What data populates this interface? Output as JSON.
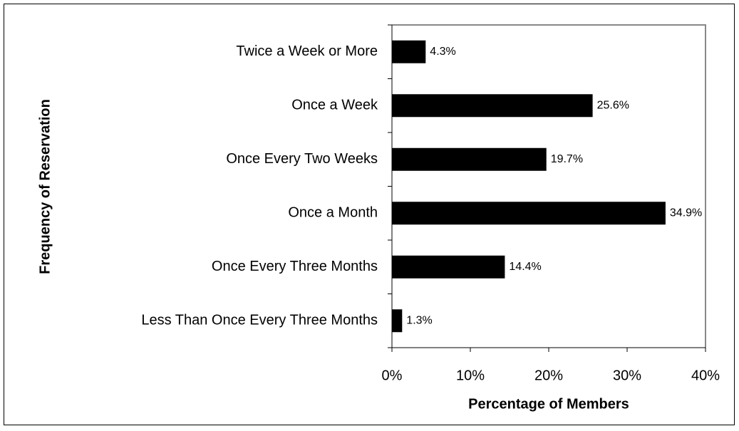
{
  "chart_data": {
    "type": "bar",
    "orientation": "horizontal",
    "x_label": "Percentage of Members",
    "y_label": "Frequency of Reservation",
    "categories": [
      "Twice a Week or More",
      "Once a Week",
      "Once Every Two Weeks",
      "Once a Month",
      "Once Every Three Months",
      "Less Than Once Every Three Months"
    ],
    "values": [
      4.3,
      25.6,
      19.7,
      34.9,
      14.4,
      1.3
    ],
    "value_labels": [
      "4.3%",
      "25.6%",
      "19.7%",
      "34.9%",
      "14.4%",
      "1.3%"
    ],
    "color": "#000000",
    "xlim": [
      0,
      40
    ],
    "xticks": [
      {
        "value": 0,
        "label": "0%"
      },
      {
        "value": 10,
        "label": "10%"
      },
      {
        "value": 20,
        "label": "20%"
      },
      {
        "value": 30,
        "label": "30%"
      },
      {
        "value": 40,
        "label": "40%"
      }
    ],
    "grid": false
  }
}
